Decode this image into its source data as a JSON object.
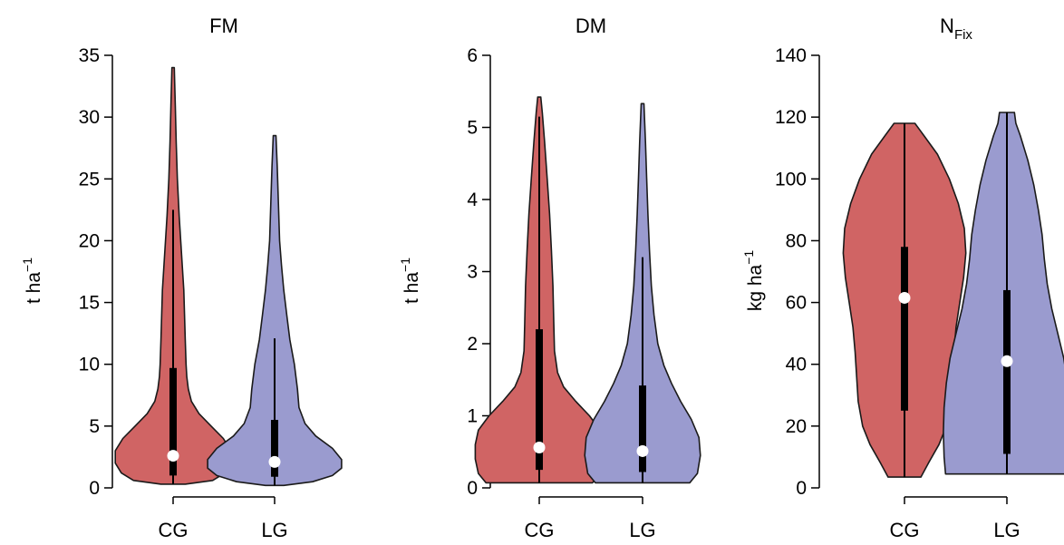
{
  "colors": {
    "CG": "#d06464",
    "LG": "#9a9bcf",
    "outline": "#1a1a1a",
    "box": "#000000",
    "median": "#ffffff"
  },
  "chart_data": [
    {
      "type": "violin",
      "title": "FM",
      "ylabel": {
        "base": "t ha",
        "sup": "−1"
      },
      "ylim": [
        0,
        35
      ],
      "yticks": [
        0,
        5,
        10,
        15,
        20,
        25,
        30,
        35
      ],
      "categories": [
        "CG",
        "LG"
      ],
      "violins": [
        {
          "name": "CG",
          "min": 0.3,
          "max": 34,
          "whisker": [
            0.3,
            22.5
          ],
          "q1": 1.0,
          "q3": 9.7,
          "median": 2.6,
          "density": [
            [
              0.3,
              0.08
            ],
            [
              0.6,
              0.26
            ],
            [
              1.2,
              0.34
            ],
            [
              2,
              0.38
            ],
            [
              3,
              0.38
            ],
            [
              4,
              0.33
            ],
            [
              5,
              0.25
            ],
            [
              6,
              0.17
            ],
            [
              7,
              0.12
            ],
            [
              8,
              0.1
            ],
            [
              9,
              0.09
            ],
            [
              10,
              0.085
            ],
            [
              12,
              0.08
            ],
            [
              14,
              0.075
            ],
            [
              16,
              0.07
            ],
            [
              18,
              0.06
            ],
            [
              20,
              0.05
            ],
            [
              22,
              0.04
            ],
            [
              25,
              0.028
            ],
            [
              28,
              0.02
            ],
            [
              31,
              0.014
            ],
            [
              34,
              0.008
            ]
          ]
        },
        {
          "name": "LG",
          "min": 0.2,
          "max": 28.5,
          "whisker": [
            0.2,
            12.1
          ],
          "q1": 0.9,
          "q3": 5.5,
          "median": 2.1,
          "density": [
            [
              0.2,
              0.06
            ],
            [
              0.5,
              0.25
            ],
            [
              1,
              0.38
            ],
            [
              1.6,
              0.44
            ],
            [
              2.3,
              0.44
            ],
            [
              3.2,
              0.38
            ],
            [
              4.2,
              0.27
            ],
            [
              5.2,
              0.2
            ],
            [
              6.5,
              0.16
            ],
            [
              8,
              0.15
            ],
            [
              10,
              0.13
            ],
            [
              12,
              0.1
            ],
            [
              14,
              0.08
            ],
            [
              16,
              0.06
            ],
            [
              18,
              0.045
            ],
            [
              20,
              0.033
            ],
            [
              23,
              0.025
            ],
            [
              26,
              0.017
            ],
            [
              28.5,
              0.009
            ]
          ]
        }
      ]
    },
    {
      "type": "violin",
      "title": "DM",
      "ylabel": {
        "base": "t ha",
        "sup": "−1"
      },
      "ylim": [
        0,
        6
      ],
      "yticks": [
        0,
        1,
        2,
        3,
        4,
        5,
        6
      ],
      "categories": [
        "CG",
        "LG"
      ],
      "violins": [
        {
          "name": "CG",
          "min": 0.07,
          "max": 5.42,
          "whisker": [
            0.07,
            5.15
          ],
          "q1": 0.25,
          "q3": 2.2,
          "median": 0.56,
          "density": [
            [
              0.07,
              0.35
            ],
            [
              0.2,
              0.4
            ],
            [
              0.4,
              0.42
            ],
            [
              0.6,
              0.42
            ],
            [
              0.8,
              0.4
            ],
            [
              1.0,
              0.33
            ],
            [
              1.2,
              0.24
            ],
            [
              1.4,
              0.16
            ],
            [
              1.6,
              0.12
            ],
            [
              1.9,
              0.1
            ],
            [
              2.3,
              0.095
            ],
            [
              2.8,
              0.09
            ],
            [
              3.3,
              0.08
            ],
            [
              3.8,
              0.068
            ],
            [
              4.3,
              0.052
            ],
            [
              4.8,
              0.035
            ],
            [
              5.2,
              0.02
            ],
            [
              5.42,
              0.01
            ]
          ]
        },
        {
          "name": "LG",
          "min": 0.07,
          "max": 5.33,
          "whisker": [
            0.07,
            3.2
          ],
          "q1": 0.22,
          "q3": 1.42,
          "median": 0.51,
          "density": [
            [
              0.07,
              0.31
            ],
            [
              0.2,
              0.36
            ],
            [
              0.45,
              0.38
            ],
            [
              0.7,
              0.37
            ],
            [
              0.95,
              0.32
            ],
            [
              1.2,
              0.25
            ],
            [
              1.45,
              0.19
            ],
            [
              1.7,
              0.14
            ],
            [
              2.0,
              0.1
            ],
            [
              2.4,
              0.075
            ],
            [
              2.8,
              0.058
            ],
            [
              3.3,
              0.045
            ],
            [
              3.8,
              0.035
            ],
            [
              4.3,
              0.027
            ],
            [
              4.8,
              0.019
            ],
            [
              5.33,
              0.009
            ]
          ]
        }
      ]
    },
    {
      "type": "violin",
      "title": {
        "base": "N",
        "sub": "Fix"
      },
      "ylabel": {
        "base": "kg ha",
        "sup": "−1"
      },
      "ylim": [
        0,
        140
      ],
      "yticks": [
        0,
        20,
        40,
        60,
        80,
        100,
        120,
        140
      ],
      "categories": [
        "CG",
        "LG"
      ],
      "violins": [
        {
          "name": "CG",
          "min": 3.5,
          "max": 118,
          "whisker": [
            3.5,
            118
          ],
          "q1": 25,
          "q3": 78,
          "median": 61.5,
          "density": [
            [
              3.5,
              0.11
            ],
            [
              8,
              0.16
            ],
            [
              14,
              0.23
            ],
            [
              20,
              0.28
            ],
            [
              28,
              0.31
            ],
            [
              36,
              0.32
            ],
            [
              44,
              0.33
            ],
            [
              52,
              0.345
            ],
            [
              60,
              0.37
            ],
            [
              68,
              0.395
            ],
            [
              76,
              0.41
            ],
            [
              84,
              0.4
            ],
            [
              92,
              0.36
            ],
            [
              100,
              0.3
            ],
            [
              108,
              0.22
            ],
            [
              114,
              0.13
            ],
            [
              118,
              0.07
            ]
          ]
        },
        {
          "name": "LG",
          "min": 4.5,
          "max": 121.5,
          "whisker": [
            4.5,
            121.5
          ],
          "q1": 11,
          "q3": 64,
          "median": 41,
          "density": [
            [
              4.5,
              0.41
            ],
            [
              10,
              0.42
            ],
            [
              18,
              0.425
            ],
            [
              26,
              0.42
            ],
            [
              34,
              0.405
            ],
            [
              42,
              0.38
            ],
            [
              50,
              0.34
            ],
            [
              58,
              0.3
            ],
            [
              66,
              0.27
            ],
            [
              74,
              0.25
            ],
            [
              82,
              0.235
            ],
            [
              90,
              0.21
            ],
            [
              98,
              0.18
            ],
            [
              106,
              0.14
            ],
            [
              114,
              0.09
            ],
            [
              118,
              0.06
            ],
            [
              121.5,
              0.05
            ]
          ]
        }
      ]
    }
  ]
}
